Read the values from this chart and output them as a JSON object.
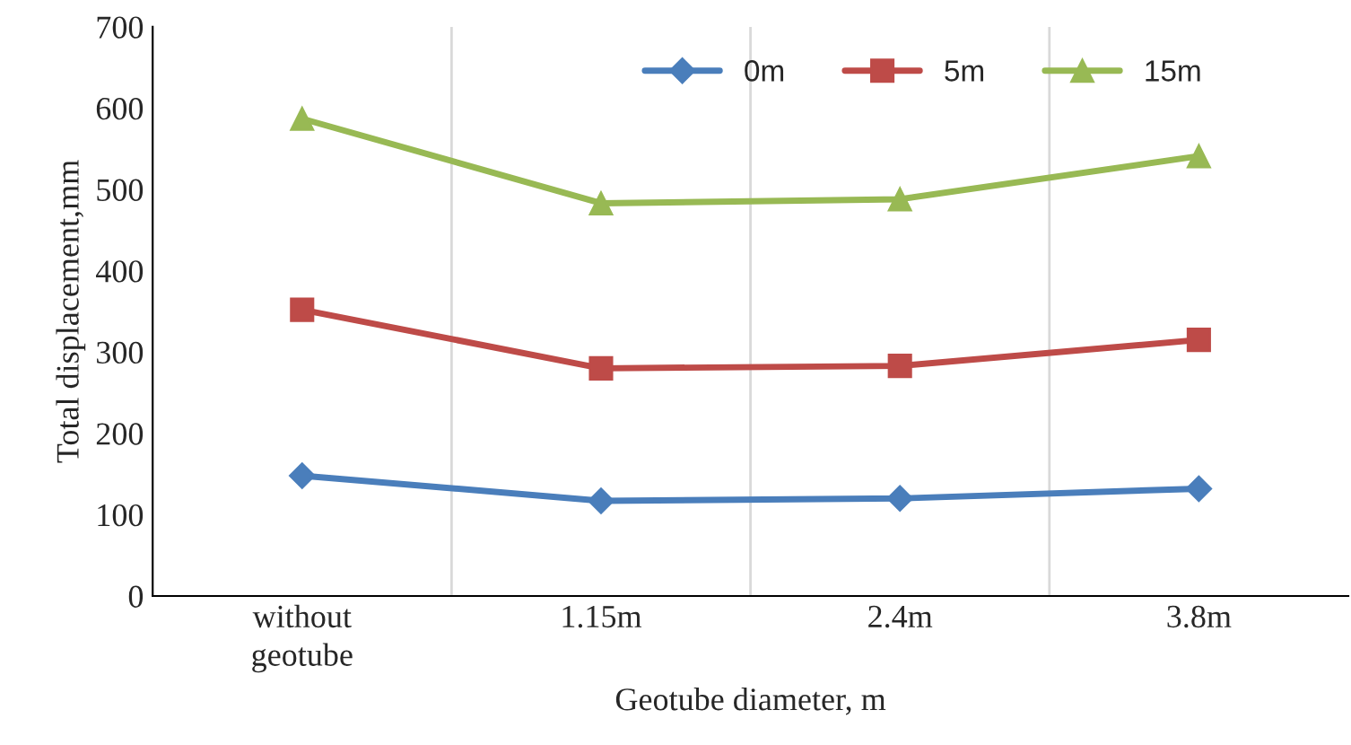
{
  "chart_data": {
    "type": "line",
    "xlabel": "Geotube diameter, m",
    "ylabel": "Total displacement,mm",
    "categories": [
      "without\ngeotube",
      "1.15m",
      "2.4m",
      "3.8m"
    ],
    "series": [
      {
        "name": "0m",
        "color": "#4a7ebb",
        "marker": "diamond",
        "values": [
          148,
          117,
          120,
          132
        ]
      },
      {
        "name": "5m",
        "color": "#be4b48",
        "marker": "square",
        "values": [
          352,
          280,
          283,
          315
        ]
      },
      {
        "name": "15m",
        "color": "#98b954",
        "marker": "triangle",
        "values": [
          587,
          483,
          488,
          541
        ]
      }
    ],
    "ylim": [
      0,
      700
    ],
    "yticks": [
      0,
      100,
      200,
      300,
      400,
      500,
      600,
      700
    ],
    "grid": "x",
    "legend": "top right",
    "line_style": "solid"
  }
}
